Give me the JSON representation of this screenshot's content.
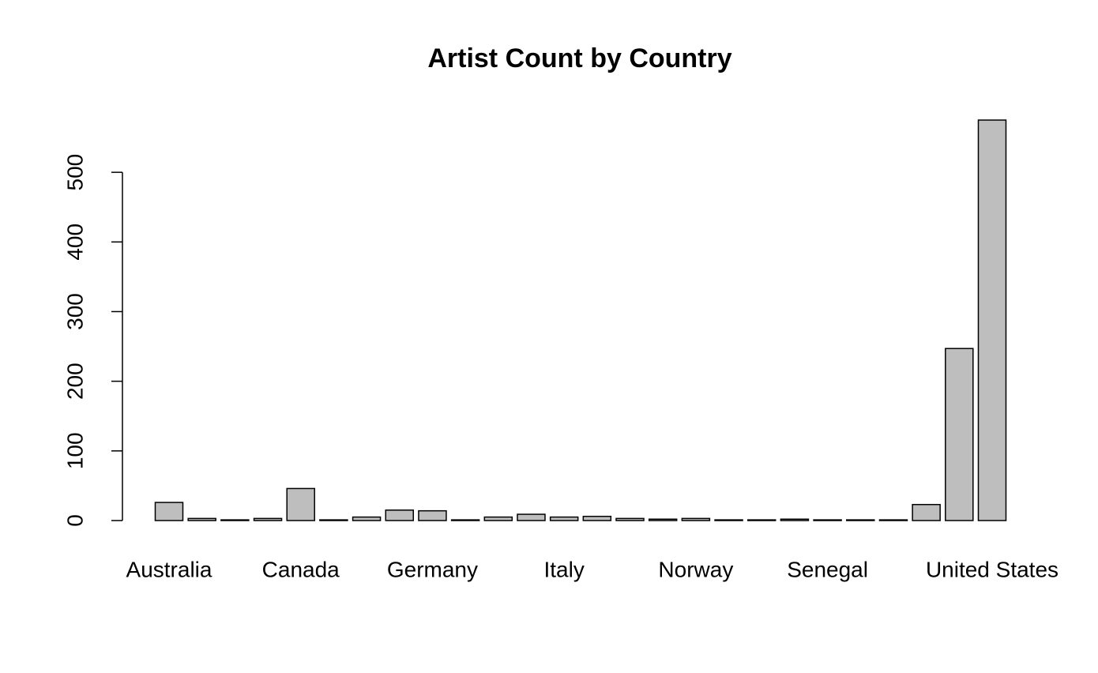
{
  "chart_data": {
    "type": "bar",
    "title": "Artist Count by Country",
    "categories": [
      "Australia",
      null,
      null,
      null,
      "Canada",
      null,
      null,
      null,
      "Germany",
      null,
      null,
      null,
      "Italy",
      null,
      null,
      null,
      "Norway",
      null,
      null,
      null,
      "Senegal",
      null,
      null,
      null,
      null,
      "United States"
    ],
    "values": [
      26,
      3,
      1,
      3,
      46,
      1,
      5,
      15,
      14,
      1,
      5,
      9,
      5,
      6,
      3,
      2,
      3,
      1,
      1,
      2,
      1,
      1,
      1,
      23,
      247,
      575
    ],
    "color": "#bebebe",
    "ylim": [
      0,
      575
    ],
    "yticks": [
      0,
      100,
      200,
      300,
      400,
      500
    ],
    "grid": false
  }
}
